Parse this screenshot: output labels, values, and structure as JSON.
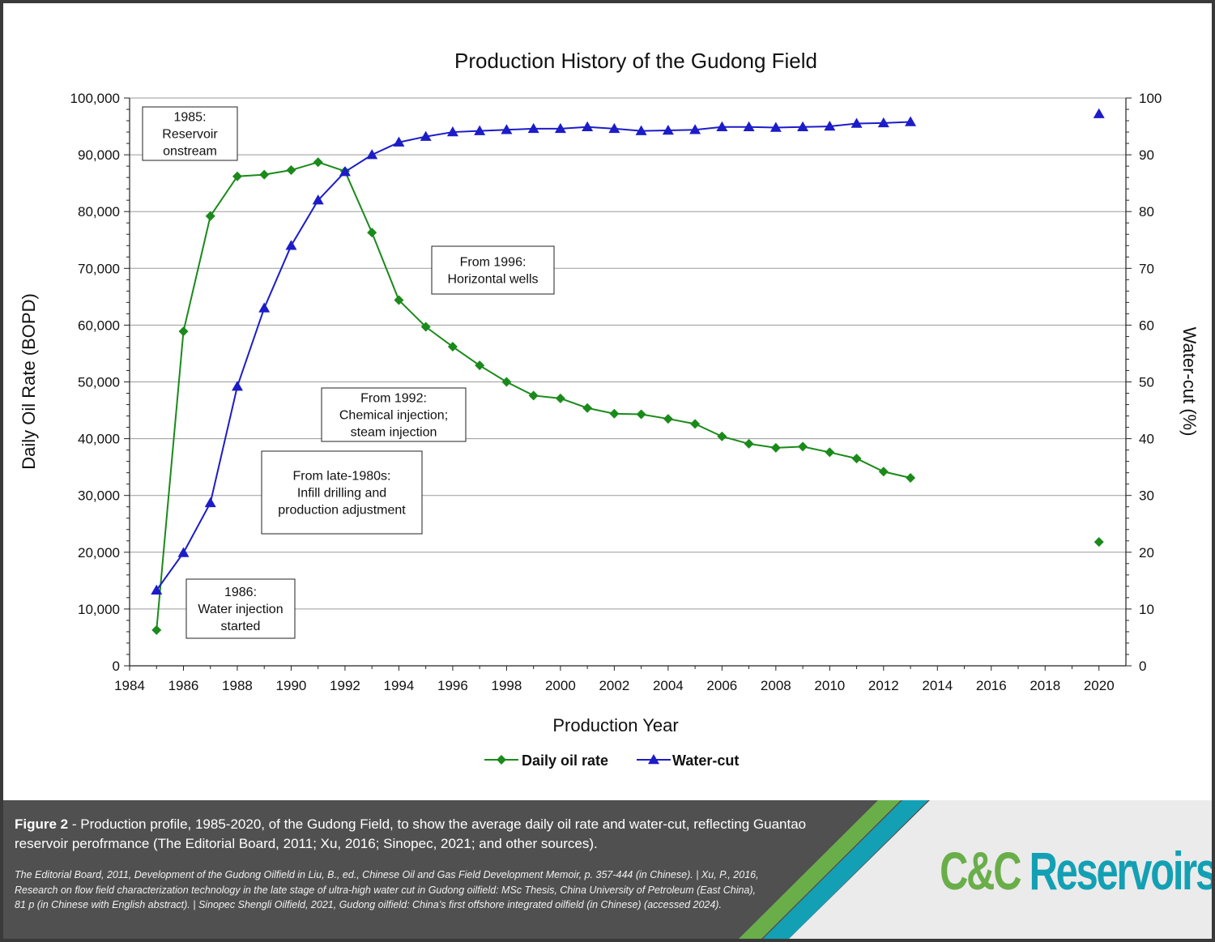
{
  "chart_data": {
    "type": "line",
    "title": "Production History of the Gudong Field",
    "xlabel": "Production Year",
    "ylabel_left": "Daily Oil Rate (BOPD)",
    "ylabel_right": "Water-cut (%)",
    "xlim": [
      1984,
      2021
    ],
    "ylim_left": [
      0,
      100000
    ],
    "ylim_right": [
      0,
      100
    ],
    "x_ticks": [
      "1984",
      "1986",
      "1988",
      "1990",
      "1992",
      "1994",
      "1996",
      "1998",
      "2000",
      "2002",
      "2004",
      "2006",
      "2008",
      "2010",
      "2012",
      "2014",
      "2016",
      "2018",
      "2020"
    ],
    "y_left_ticks": [
      "0",
      "10,000",
      "20,000",
      "30,000",
      "40,000",
      "50,000",
      "60,000",
      "70,000",
      "80,000",
      "90,000",
      "100,000"
    ],
    "y_right_ticks": [
      "0",
      "10",
      "20",
      "30",
      "40",
      "50",
      "60",
      "70",
      "80",
      "90",
      "100"
    ],
    "grid": true,
    "legend_position": "bottom",
    "series": [
      {
        "name": "Daily oil rate",
        "axis": "left",
        "color": "#1a8a1a",
        "marker": "diamond",
        "x": [
          1985,
          1986,
          1987,
          1988,
          1989,
          1990,
          1991,
          1992,
          1993,
          1994,
          1995,
          1996,
          1997,
          1998,
          1999,
          2000,
          2001,
          2002,
          2003,
          2004,
          2005,
          2006,
          2007,
          2008,
          2009,
          2010,
          2011,
          2012,
          2013
        ],
        "values": [
          6300,
          58900,
          79200,
          86200,
          86500,
          87300,
          88700,
          87100,
          76300,
          64400,
          59700,
          56200,
          52900,
          50000,
          47600,
          47100,
          45400,
          44400,
          44300,
          43500,
          42600,
          40400,
          39100,
          38400,
          38600,
          37600,
          36500,
          34200,
          33100
        ],
        "isolated_points": [
          {
            "x": 2020,
            "value": 21800
          }
        ]
      },
      {
        "name": "Water-cut",
        "axis": "right",
        "color": "#1c1cc8",
        "marker": "triangle",
        "x": [
          1985,
          1986,
          1987,
          1988,
          1989,
          1990,
          1991,
          1992,
          1993,
          1994,
          1995,
          1996,
          1997,
          1998,
          1999,
          2000,
          2001,
          2002,
          2003,
          2004,
          2005,
          2006,
          2007,
          2008,
          2009,
          2010,
          2011,
          2012,
          2013
        ],
        "values": [
          13.3,
          19.9,
          28.7,
          49.2,
          63.0,
          74.0,
          82.0,
          87.0,
          90.0,
          92.2,
          93.2,
          94.0,
          94.2,
          94.4,
          94.6,
          94.6,
          94.9,
          94.6,
          94.2,
          94.3,
          94.4,
          94.9,
          94.9,
          94.8,
          94.9,
          95.0,
          95.5,
          95.6,
          95.8
        ],
        "isolated_points": [
          {
            "x": 2020,
            "value": 97.2
          }
        ]
      }
    ],
    "annotations": [
      {
        "lines": [
          "1985:",
          "Reservoir",
          "onstream"
        ]
      },
      {
        "lines": [
          "From 1996:",
          "Horizontal wells"
        ]
      },
      {
        "lines": [
          "From 1992:",
          "Chemical injection;",
          "steam injection"
        ]
      },
      {
        "lines": [
          "From late-1980s:",
          "Infill drilling and",
          "production adjustment"
        ]
      },
      {
        "lines": [
          "1986:",
          "Water injection",
          "started"
        ]
      }
    ]
  },
  "footer": {
    "figure_label": "Figure 2",
    "caption": " - Production profile, 1985-2020, of the Gudong Field, to show the average daily oil rate and water-cut, reflecting Guantao reservoir perofrmance (The Editorial Board, 2011; Xu, 2016; Sinopec, 2021; and other sources).",
    "references": "The Editorial Board, 2011, Development of the Gudong Oilfield in Liu, B., ed., Chinese Oil and Gas Field Development Memoir, p. 357-444 (in Chinese). | Xu, P., 2016, Research on flow field characterization technology in the late stage of ultra-high water cut in Gudong oilfield: MSc Thesis, China University of Petroleum (East China), 81 p (in Chinese with English abstract). |  Sinopec Shengli Oilfield, 2021, Gudong oilfield: China’s first offshore integrated oilfield (in Chinese) (accessed 2024).",
    "brand_part1": "C&C",
    "brand_part2": " Reservoirs"
  }
}
